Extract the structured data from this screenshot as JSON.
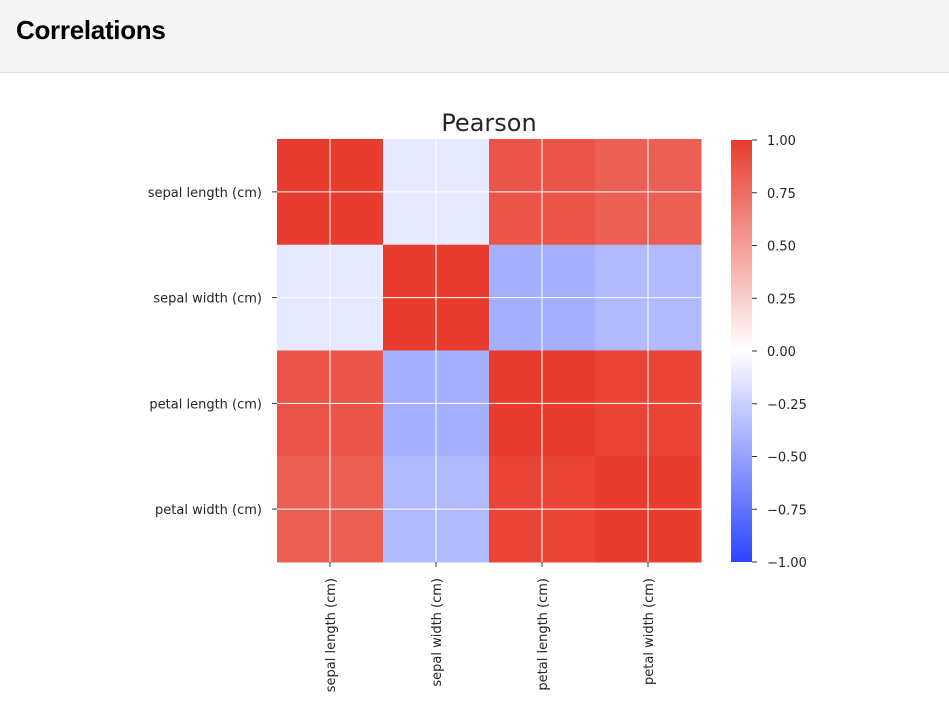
{
  "header": {
    "title": "Correlations"
  },
  "chart_data": {
    "type": "heatmap",
    "title": "Pearson",
    "labels": [
      "sepal length (cm)",
      "sepal width (cm)",
      "petal length (cm)",
      "petal width (cm)"
    ],
    "values": [
      [
        1.0,
        -0.12,
        0.87,
        0.82
      ],
      [
        -0.12,
        1.0,
        -0.43,
        -0.37
      ],
      [
        0.87,
        -0.43,
        1.0,
        0.96
      ],
      [
        0.82,
        -0.37,
        0.96,
        1.0
      ]
    ],
    "clim": [
      -1,
      1
    ],
    "grid": true,
    "colorbar": {
      "ticks": [
        1.0,
        0.75,
        0.5,
        0.25,
        0.0,
        -0.25,
        -0.5,
        -0.75,
        -1.0
      ],
      "tick_labels": [
        "1.00",
        "0.75",
        "0.50",
        "0.25",
        "0.00",
        "−0.25",
        "−0.50",
        "−0.75",
        "−1.00"
      ]
    },
    "colors": {
      "positive": "#e83c2e",
      "neutral": "#ffffff",
      "negative": "#2b45ff"
    }
  }
}
